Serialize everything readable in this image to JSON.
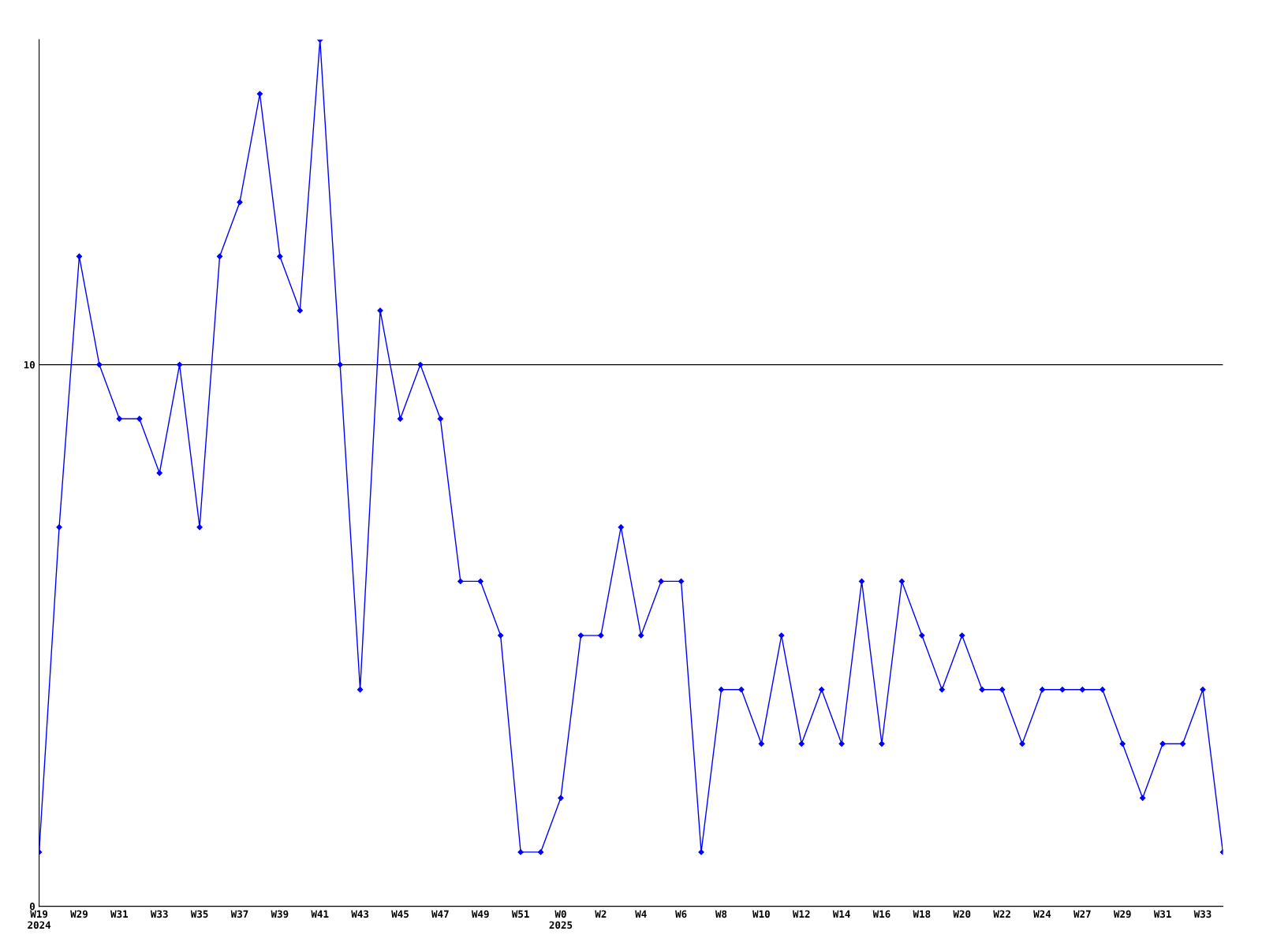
{
  "chart_data": {
    "type": "line",
    "categories": [
      "W19\n2024",
      null,
      "W29",
      null,
      "W31",
      null,
      "W33",
      null,
      "W35",
      null,
      "W37",
      null,
      "W39",
      null,
      "W41",
      null,
      "W43",
      null,
      "W45",
      null,
      "W47",
      null,
      "W49",
      null,
      "W51",
      null,
      "W0\n2025",
      null,
      "W2",
      null,
      "W4",
      null,
      "W6",
      null,
      "W8",
      null,
      "W10",
      null,
      "W12",
      null,
      "W14",
      null,
      "W16",
      null,
      "W18",
      null,
      "W20",
      null,
      "W22",
      null,
      "W24",
      null,
      "W27",
      null,
      "W29",
      null,
      "W31",
      null,
      "W33",
      null
    ],
    "series": [
      {
        "color": "#0000ff",
        "values": [
          1,
          7,
          12,
          10,
          9,
          9,
          8,
          10,
          7,
          12,
          13,
          15,
          12,
          11,
          16,
          10,
          4,
          11,
          9,
          10,
          9,
          6,
          6,
          5,
          1,
          1,
          2,
          5,
          5,
          7,
          5,
          6,
          6,
          1,
          4,
          4,
          3,
          5,
          3,
          4,
          3,
          6,
          3,
          6,
          5,
          4,
          5,
          4,
          4,
          3,
          4,
          4,
          4,
          4,
          3,
          2,
          3,
          3,
          4,
          1
        ]
      }
    ],
    "ylim": [
      0,
      16
    ],
    "yticks": [
      0,
      10
    ],
    "grid": "y",
    "marker": "diamond",
    "line_style": "solid"
  }
}
